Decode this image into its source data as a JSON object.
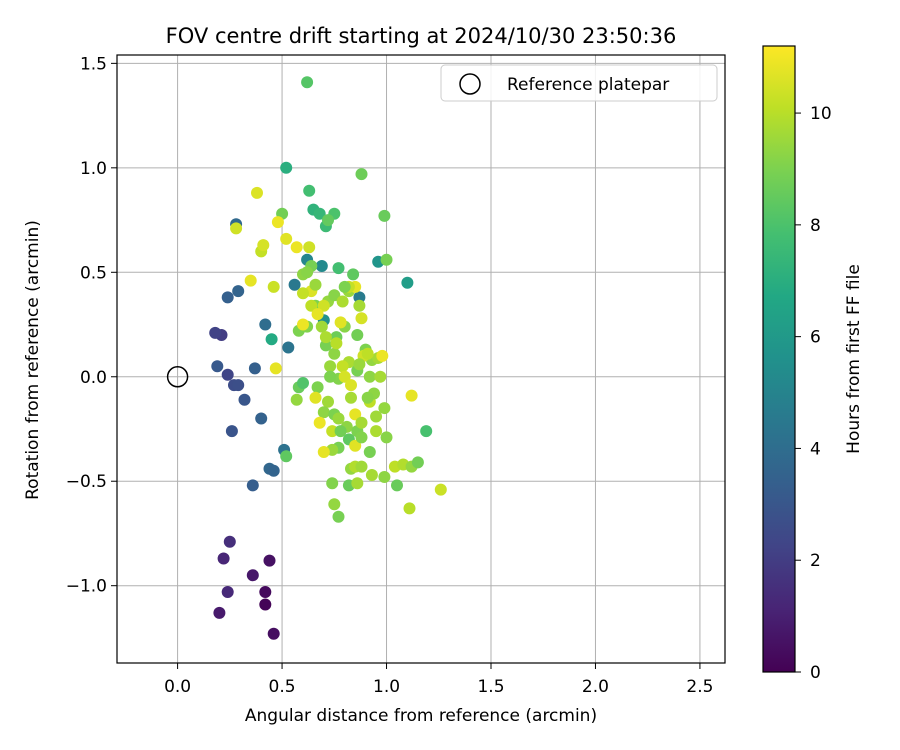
{
  "chart_data": {
    "type": "scatter",
    "title": "FOV centre drift starting at 2024/10/30 23:50:36",
    "xlabel": "Angular distance from reference (arcmin)",
    "ylabel": "Rotation from reference (arcmin)",
    "xlim": [
      -0.29,
      2.62
    ],
    "ylim": [
      -1.37,
      1.54
    ],
    "xticks": [
      0.0,
      0.5,
      1.0,
      1.5,
      2.0,
      2.5
    ],
    "xtick_labels": [
      "0.0",
      "0.5",
      "1.0",
      "1.5",
      "2.0",
      "2.5"
    ],
    "yticks": [
      -1.0,
      -0.5,
      0.0,
      0.5,
      1.0,
      1.5
    ],
    "ytick_labels": [
      "−1.0",
      "−0.5",
      "0.0",
      "0.5",
      "1.0",
      "1.5"
    ],
    "grid": true,
    "legend": {
      "placement": "top-right",
      "entries": [
        "Reference platepar"
      ]
    },
    "reference_point": {
      "x": 0.0,
      "y": 0.0
    },
    "colorbar": {
      "label": "Hours from first FF file",
      "colormap": "viridis",
      "range": [
        0,
        11.2
      ],
      "ticks": [
        0,
        2,
        4,
        6,
        8,
        10
      ],
      "tick_labels": [
        "0",
        "2",
        "4",
        "6",
        "8",
        "10"
      ]
    },
    "points": [
      [
        0.42,
        -1.09,
        0.1
      ],
      [
        0.46,
        -1.23,
        0.4
      ],
      [
        0.42,
        -1.03,
        0.3
      ],
      [
        0.44,
        -0.88,
        0.5
      ],
      [
        0.2,
        -1.13,
        0.8
      ],
      [
        0.36,
        -0.95,
        0.7
      ],
      [
        0.22,
        -0.87,
        1.2
      ],
      [
        0.24,
        -1.03,
        1.3
      ],
      [
        0.25,
        -0.79,
        1.5
      ],
      [
        0.21,
        0.2,
        2.0
      ],
      [
        0.18,
        0.21,
        2.2
      ],
      [
        0.24,
        0.01,
        2.3
      ],
      [
        0.27,
        -0.04,
        2.6
      ],
      [
        0.29,
        -0.04,
        2.7
      ],
      [
        0.26,
        -0.26,
        2.9
      ],
      [
        0.32,
        -0.11,
        3.0
      ],
      [
        0.19,
        0.05,
        3.1
      ],
      [
        0.24,
        0.38,
        3.4
      ],
      [
        0.29,
        0.41,
        3.6
      ],
      [
        0.28,
        0.73,
        3.8
      ],
      [
        0.37,
        0.04,
        3.4
      ],
      [
        0.4,
        -0.2,
        3.5
      ],
      [
        0.36,
        -0.52,
        3.3
      ],
      [
        0.44,
        -0.44,
        3.7
      ],
      [
        0.46,
        -0.45,
        3.6
      ],
      [
        0.42,
        0.25,
        4.0
      ],
      [
        0.51,
        -0.35,
        4.2
      ],
      [
        0.53,
        0.14,
        4.3
      ],
      [
        0.56,
        0.44,
        4.5
      ],
      [
        0.62,
        0.56,
        5.1
      ],
      [
        0.69,
        0.53,
        5.3
      ],
      [
        0.87,
        0.38,
        4.6
      ],
      [
        0.7,
        0.27,
        5.6
      ],
      [
        0.96,
        0.55,
        5.8
      ],
      [
        1.1,
        0.45,
        6.2
      ],
      [
        0.45,
        0.18,
        6.8
      ],
      [
        0.52,
        1.0,
        7.0
      ],
      [
        0.65,
        0.8,
        7.2
      ],
      [
        0.68,
        0.78,
        7.4
      ],
      [
        0.71,
        0.72,
        7.6
      ],
      [
        0.63,
        0.89,
        7.8
      ],
      [
        0.75,
        0.78,
        8.0
      ],
      [
        0.88,
        0.97,
        8.7
      ],
      [
        0.62,
        1.41,
        8.2
      ],
      [
        0.77,
        0.52,
        7.8
      ],
      [
        0.5,
        0.78,
        8.8
      ],
      [
        0.72,
        0.75,
        8.5
      ],
      [
        0.99,
        0.77,
        8.6
      ],
      [
        1.0,
        0.56,
        8.9
      ],
      [
        0.84,
        0.49,
        8.4
      ],
      [
        0.6,
        0.49,
        9.3
      ],
      [
        0.64,
        0.53,
        8.9
      ],
      [
        0.66,
        0.34,
        9.0
      ],
      [
        0.72,
        0.36,
        9.4
      ],
      [
        0.75,
        0.39,
        9.2
      ],
      [
        0.79,
        0.36,
        9.8
      ],
      [
        0.82,
        0.41,
        9.5
      ],
      [
        0.87,
        0.34,
        9.7
      ],
      [
        0.58,
        0.22,
        9.0
      ],
      [
        0.62,
        0.24,
        9.1
      ],
      [
        0.69,
        0.24,
        9.6
      ],
      [
        0.71,
        0.15,
        8.9
      ],
      [
        0.75,
        0.11,
        9.3
      ],
      [
        0.76,
        0.19,
        8.7
      ],
      [
        0.8,
        0.24,
        9.2
      ],
      [
        0.86,
        0.2,
        8.8
      ],
      [
        0.9,
        0.13,
        9.0
      ],
      [
        0.93,
        0.08,
        9.4
      ],
      [
        0.96,
        0.09,
        9.7
      ],
      [
        0.82,
        0.07,
        9.8
      ],
      [
        0.86,
        0.03,
        8.9
      ],
      [
        0.92,
        0.0,
        9.3
      ],
      [
        0.97,
        0.0,
        9.7
      ],
      [
        0.73,
        0.05,
        9.5
      ],
      [
        0.77,
        -0.01,
        9.1
      ],
      [
        0.67,
        -0.05,
        9.0
      ],
      [
        0.58,
        -0.05,
        8.6
      ],
      [
        0.6,
        -0.03,
        8.1
      ],
      [
        0.57,
        -0.11,
        9.4
      ],
      [
        0.66,
        -0.1,
        10.7
      ],
      [
        0.72,
        -0.12,
        9.6
      ],
      [
        0.7,
        -0.17,
        9.3
      ],
      [
        0.68,
        -0.22,
        10.9
      ],
      [
        0.75,
        -0.18,
        9.0
      ],
      [
        0.77,
        -0.2,
        9.5
      ],
      [
        0.81,
        -0.24,
        9.3
      ],
      [
        0.85,
        -0.18,
        10.8
      ],
      [
        0.86,
        -0.26,
        9.0
      ],
      [
        0.88,
        -0.22,
        9.7
      ],
      [
        0.92,
        -0.12,
        10.1
      ],
      [
        0.95,
        -0.19,
        9.6
      ],
      [
        0.99,
        -0.15,
        9.4
      ],
      [
        1.0,
        -0.29,
        9.2
      ],
      [
        0.95,
        -0.26,
        9.8
      ],
      [
        0.82,
        -0.3,
        8.4
      ],
      [
        0.77,
        -0.34,
        8.9
      ],
      [
        0.74,
        -0.35,
        9.5
      ],
      [
        0.7,
        -0.36,
        10.8
      ],
      [
        0.85,
        -0.33,
        10.7
      ],
      [
        0.92,
        -0.36,
        8.9
      ],
      [
        0.83,
        -0.44,
        9.4
      ],
      [
        0.85,
        -0.43,
        9.9
      ],
      [
        0.88,
        -0.43,
        9.6
      ],
      [
        0.93,
        -0.47,
        9.7
      ],
      [
        0.99,
        -0.48,
        9.3
      ],
      [
        0.74,
        -0.51,
        9.1
      ],
      [
        0.82,
        -0.52,
        8.6
      ],
      [
        0.86,
        -0.51,
        9.7
      ],
      [
        0.75,
        -0.61,
        9.4
      ],
      [
        0.77,
        -0.67,
        8.9
      ],
      [
        1.04,
        -0.43,
        10.1
      ],
      [
        1.08,
        -0.42,
        9.9
      ],
      [
        1.12,
        -0.43,
        9.4
      ],
      [
        1.15,
        -0.41,
        8.8
      ],
      [
        1.05,
        -0.52,
        8.6
      ],
      [
        1.11,
        -0.63,
        10.0
      ],
      [
        1.19,
        -0.26,
        7.9
      ],
      [
        1.26,
        -0.54,
        10.3
      ],
      [
        1.12,
        -0.09,
        10.8
      ],
      [
        0.52,
        -0.38,
        8.4
      ],
      [
        0.38,
        0.88,
        10.6
      ],
      [
        0.28,
        0.71,
        10.4
      ],
      [
        0.4,
        0.6,
        10.2
      ],
      [
        0.41,
        0.63,
        10.5
      ],
      [
        0.35,
        0.46,
        10.8
      ],
      [
        0.46,
        0.43,
        10.3
      ],
      [
        0.48,
        0.74,
        10.9
      ],
      [
        0.52,
        0.66,
        10.7
      ],
      [
        0.57,
        0.62,
        10.9
      ],
      [
        0.63,
        0.62,
        10.4
      ],
      [
        0.64,
        0.41,
        10.6
      ],
      [
        0.6,
        0.4,
        10.2
      ],
      [
        0.64,
        0.34,
        10.1
      ],
      [
        0.7,
        0.34,
        10.4
      ],
      [
        0.67,
        0.3,
        10.8
      ],
      [
        0.6,
        0.25,
        10.9
      ],
      [
        0.78,
        0.26,
        10.7
      ],
      [
        0.88,
        0.28,
        10.5
      ],
      [
        0.85,
        0.43,
        10.8
      ],
      [
        0.82,
        0.43,
        10.2
      ],
      [
        0.76,
        0.16,
        10.0
      ],
      [
        0.71,
        0.19,
        9.8
      ],
      [
        0.79,
        0.05,
        10.2
      ],
      [
        0.8,
        0.0,
        10.5
      ],
      [
        0.89,
        0.1,
        10.4
      ],
      [
        0.91,
        0.11,
        10.1
      ],
      [
        0.98,
        0.1,
        10.9
      ],
      [
        0.83,
        -0.04,
        10.6
      ],
      [
        0.47,
        0.04,
        10.8
      ],
      [
        0.74,
        -0.26,
        10.2
      ],
      [
        0.66,
        0.44,
        9.5
      ],
      [
        0.62,
        0.5,
        9.2
      ],
      [
        0.8,
        0.43,
        9.0
      ],
      [
        0.87,
        0.06,
        9.5
      ],
      [
        0.94,
        -0.08,
        9.3
      ],
      [
        0.83,
        -0.1,
        9.7
      ],
      [
        0.78,
        -0.26,
        8.8
      ],
      [
        0.88,
        -0.29,
        9.1
      ],
      [
        0.73,
        0.0,
        9.0
      ],
      [
        0.91,
        -0.1,
        9.2
      ]
    ]
  }
}
